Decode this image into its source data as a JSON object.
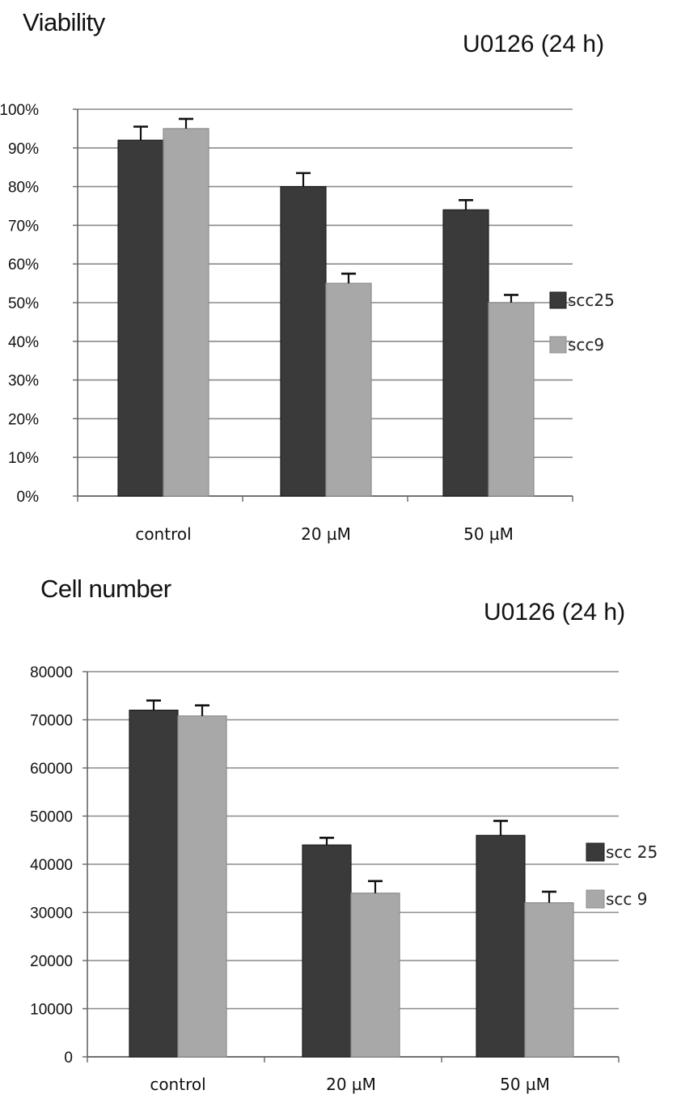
{
  "chart_data": [
    {
      "type": "bar",
      "title": "Viability",
      "subtitle": "U0126 (24 h)",
      "categories": [
        "control",
        "20 µM",
        "50 µM"
      ],
      "series": [
        {
          "name": "scc25",
          "values": [
            92,
            80,
            74
          ],
          "errors": [
            3.5,
            3.5,
            2.5
          ]
        },
        {
          "name": "scc9",
          "values": [
            95,
            55,
            50
          ],
          "errors": [
            2.5,
            2.5,
            2.0
          ]
        }
      ],
      "ylim": [
        0,
        100
      ],
      "yticks": [
        0,
        10,
        20,
        30,
        40,
        50,
        60,
        70,
        80,
        90,
        100
      ],
      "ytick_labels": [
        "0%",
        "10%",
        "20%",
        "30%",
        "40%",
        "50%",
        "60%",
        "70%",
        "80%",
        "90%",
        "100%"
      ],
      "grid": true,
      "legend": "right",
      "colors": {
        "scc25": "#3a3a3a",
        "scc9": "#a8a8a8"
      }
    },
    {
      "type": "bar",
      "title": "Cell number",
      "subtitle": "U0126 (24 h)",
      "categories": [
        "control",
        "20  µM",
        "50  µM"
      ],
      "series": [
        {
          "name": "scc 25",
          "values": [
            72000,
            44000,
            46000
          ],
          "errors": [
            2000,
            1500,
            3000
          ]
        },
        {
          "name": "scc 9",
          "values": [
            70800,
            34000,
            32000
          ],
          "errors": [
            2200,
            2500,
            2300
          ]
        }
      ],
      "ylim": [
        0,
        80000
      ],
      "yticks": [
        0,
        10000,
        20000,
        30000,
        40000,
        50000,
        60000,
        70000,
        80000
      ],
      "ytick_labels": [
        "0",
        "10000",
        "20000",
        "30000",
        "40000",
        "50000",
        "60000",
        "70000",
        "80000"
      ],
      "grid": true,
      "legend": "right",
      "colors": {
        "scc25": "#3a3a3a",
        "scc9": "#a8a8a8"
      }
    }
  ]
}
